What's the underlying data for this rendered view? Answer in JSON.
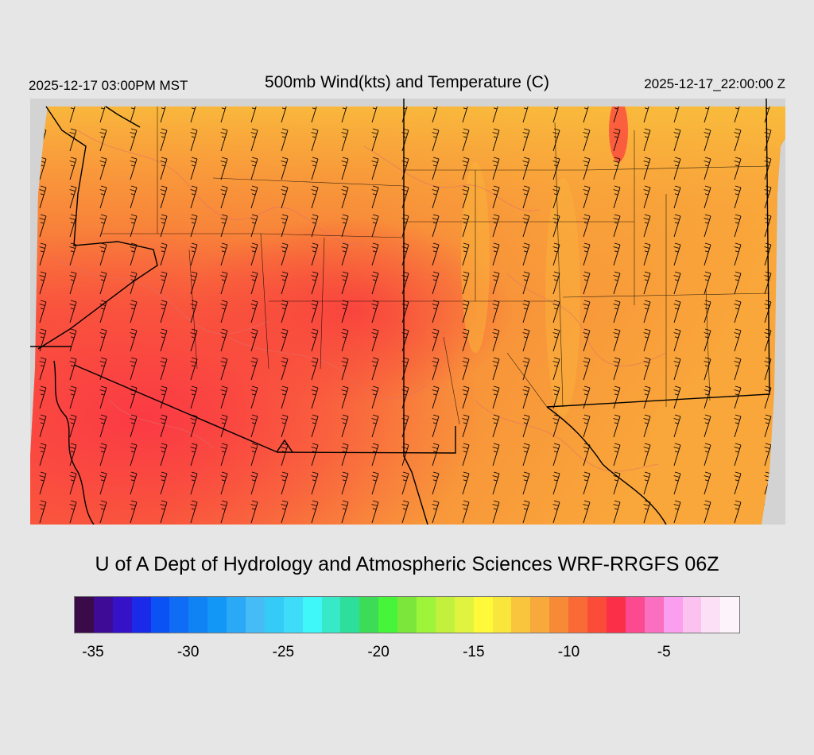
{
  "header": {
    "valid_local": "2025-12-17 03:00PM MST",
    "title": "500mb Wind(kts) and Temperature (C)",
    "valid_utc": "2025-12-17_22:00:00 Z"
  },
  "credit": "U of A Dept of Hydrology and Atmospheric Sciences WRF-RRGFS 06Z",
  "colorbar": {
    "colors": [
      "#3a0a49",
      "#3d0b96",
      "#3511c7",
      "#1a2ae8",
      "#0a52f4",
      "#0f6cf5",
      "#0f83f4",
      "#1297f6",
      "#2aa9f7",
      "#46bcf7",
      "#34cbf7",
      "#3fdcfa",
      "#3ff6f9",
      "#37e9c6",
      "#2ede9b",
      "#3ddc58",
      "#46f43a",
      "#7ce63b",
      "#9ef43b",
      "#c2f03c",
      "#e0f33e",
      "#fff93a",
      "#f9e63c",
      "#f9c53c",
      "#f8a93b",
      "#f78a37",
      "#f96a36",
      "#fb4c3a",
      "#fb2f48",
      "#fb4a8f",
      "#fa6fc0",
      "#fb9ef0",
      "#fbc1ef",
      "#fbe0f6",
      "#fdf3fb"
    ],
    "tick_labels": [
      "-35",
      "-30",
      "-25",
      "-20",
      "-15",
      "-10",
      "-5"
    ],
    "tick_values": [
      -35,
      -30,
      -25,
      -20,
      -15,
      -10,
      -5
    ],
    "min": -36,
    "max": -1
  }
}
